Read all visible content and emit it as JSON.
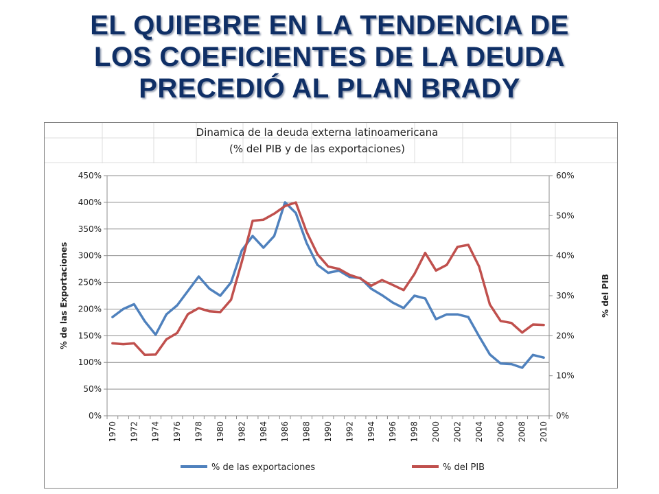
{
  "slide": {
    "title_lines": [
      "EL QUIEBRE EN LA TENDENCIA DE",
      "LOS COEFICIENTES DE LA DEUDA",
      "PRECEDIÓ AL PLAN BRADY"
    ]
  },
  "chart_data": {
    "type": "line",
    "title": "Dinamica de la deuda externa latinoamericana",
    "subtitle": "(% del PIB y de las exportaciones)",
    "ylabel": "% de las Exportaciones",
    "y2label": "% del PIB",
    "x": [
      1970,
      1971,
      1972,
      1973,
      1974,
      1975,
      1976,
      1977,
      1978,
      1979,
      1980,
      1981,
      1982,
      1983,
      1984,
      1985,
      1986,
      1987,
      1988,
      1989,
      1990,
      1991,
      1992,
      1993,
      1994,
      1995,
      1996,
      1997,
      1998,
      1999,
      2000,
      2001,
      2002,
      2003,
      2004,
      2005,
      2006,
      2007,
      2008,
      2009,
      2010
    ],
    "x_tick_labels": [
      "1970",
      "1972",
      "1974",
      "1976",
      "1978",
      "1980",
      "1982",
      "1984",
      "1986",
      "1988",
      "1990",
      "1992",
      "1994",
      "1996",
      "1998",
      "2000",
      "2002",
      "2004",
      "2006",
      "2008",
      "2010"
    ],
    "ylim": [
      0,
      4.5
    ],
    "y_tick_labels": [
      "0%",
      "50%",
      "100%",
      "150%",
      "200%",
      "250%",
      "300%",
      "350%",
      "400%",
      "450%"
    ],
    "y2lim": [
      0,
      0.6
    ],
    "y2_tick_labels": [
      "0%",
      "10%",
      "20%",
      "30%",
      "40%",
      "50%",
      "60%"
    ],
    "legend_position": "bottom",
    "series": [
      {
        "name": "% de las exportaciones",
        "axis": "left",
        "color": "#4f81bd",
        "values": [
          1.85,
          2.0,
          2.09,
          1.77,
          1.52,
          1.9,
          2.07,
          2.34,
          2.61,
          2.38,
          2.25,
          2.5,
          3.1,
          3.37,
          3.15,
          3.37,
          4.0,
          3.8,
          3.24,
          2.83,
          2.68,
          2.72,
          2.6,
          2.58,
          2.38,
          2.26,
          2.12,
          2.02,
          2.25,
          2.2,
          1.81,
          1.9,
          1.9,
          1.85,
          1.49,
          1.15,
          0.98,
          0.97,
          0.9,
          1.14,
          1.09
        ]
      },
      {
        "name": "% del PIB",
        "axis": "right",
        "color": "#c0504d",
        "values": [
          0.181,
          0.179,
          0.181,
          0.152,
          0.153,
          0.191,
          0.207,
          0.254,
          0.269,
          0.261,
          0.259,
          0.29,
          0.385,
          0.487,
          0.49,
          0.505,
          0.524,
          0.533,
          0.46,
          0.404,
          0.373,
          0.367,
          0.352,
          0.343,
          0.325,
          0.339,
          0.327,
          0.314,
          0.354,
          0.407,
          0.363,
          0.377,
          0.422,
          0.427,
          0.373,
          0.278,
          0.237,
          0.232,
          0.208,
          0.228,
          0.227
        ]
      }
    ]
  }
}
